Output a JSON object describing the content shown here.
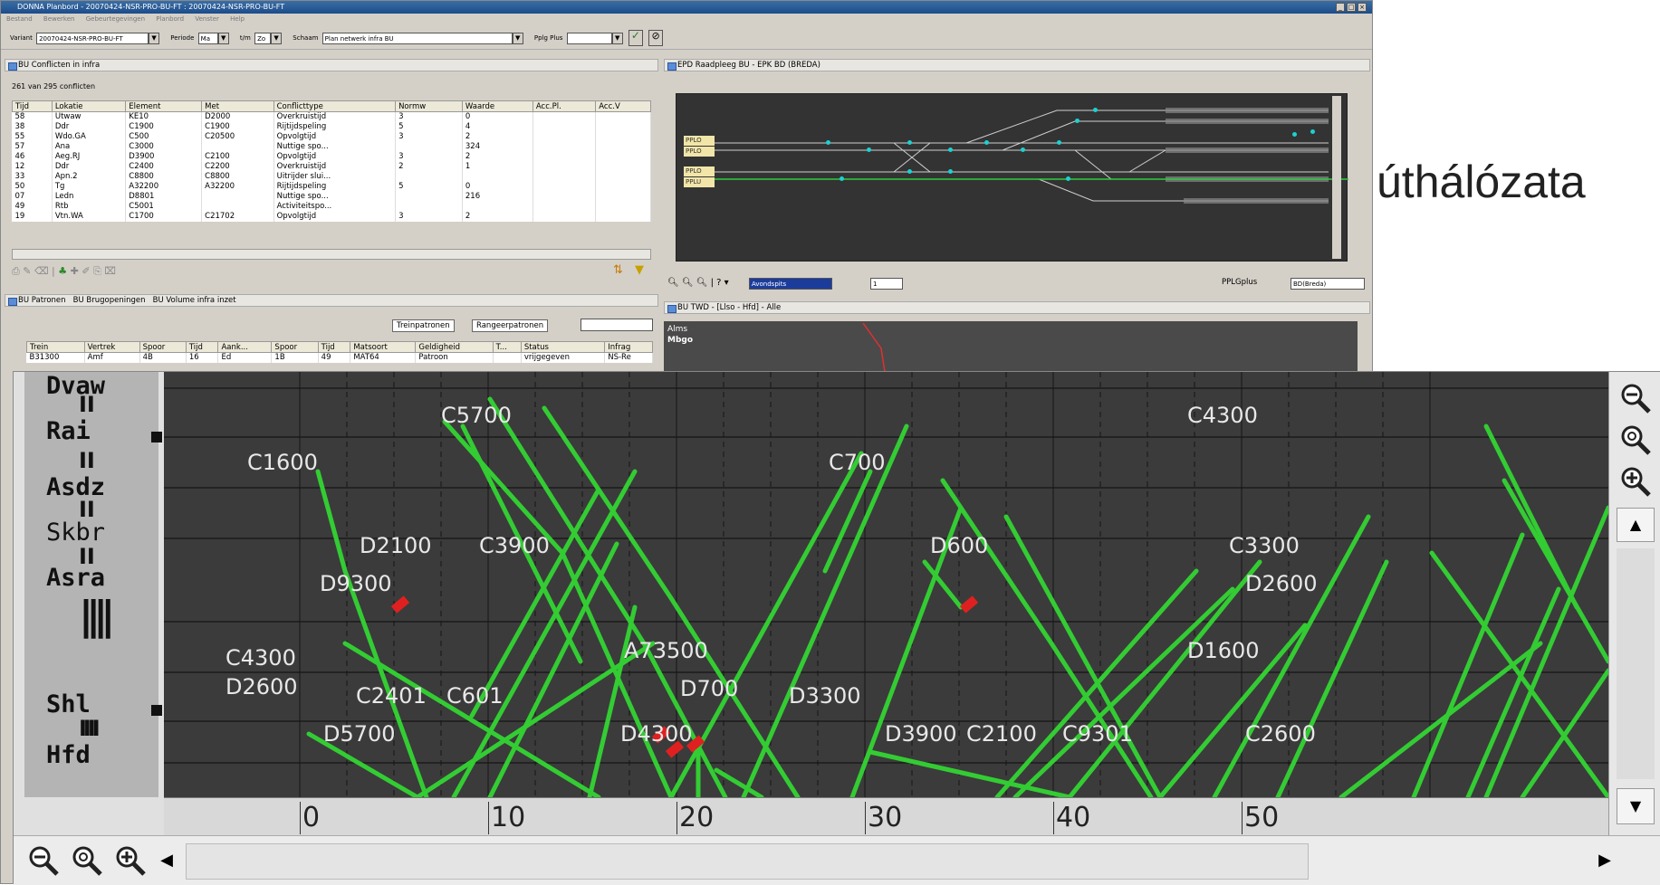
{
  "window": {
    "title": "DONNA Planbord - 20070424-NSR-PRO-BU-FT : 20070424-NSR-PRO-BU-FT",
    "menu": [
      "Bestand",
      "Bewerken",
      "Gebeurtegevingen",
      "Planbord",
      "Venster",
      "Help"
    ]
  },
  "toolbar": {
    "variant_label": "Variant",
    "variant_value": "20070424-NSR-PRO-BU-FT",
    "periode_label": "Periode",
    "periode_value": "Ma",
    "tm_label": "t/m",
    "tm_value": "Zo",
    "schaam_label": "Schaam",
    "schaam_value": "Plan netwerk infra BU",
    "pplg_label": "Pplg Plus"
  },
  "conflicts_panel": {
    "title": "BU Conflicten in infra",
    "count_text": "261 van 295 conflicten",
    "columns": [
      "Tijd",
      "Lokatie",
      "Element",
      "Met",
      "Conflicttype",
      "Normw",
      "Waarde",
      "Acc.Pl.",
      "Acc.V"
    ],
    "rows": [
      [
        "58",
        "Utwaw",
        "KE10",
        "D2000",
        "Overkruistijd",
        "3",
        "0",
        "",
        ""
      ],
      [
        "38",
        "Ddr",
        "C1900",
        "C1900",
        "Rijtijdspeling",
        "5",
        "4",
        "",
        ""
      ],
      [
        "55",
        "Wdo.GA",
        "C500",
        "C20500",
        "Opvolgtijd",
        "3",
        "2",
        "",
        ""
      ],
      [
        "57",
        "Ana",
        "C3000",
        "",
        "Nuttige spo...",
        "",
        "324",
        "",
        ""
      ],
      [
        "46",
        "Aeg.RJ",
        "D3900",
        "C2100",
        "Opvolgtijd",
        "3",
        "2",
        "",
        ""
      ],
      [
        "12",
        "Ddr",
        "C2400",
        "C2200",
        "Overkruistijd",
        "2",
        "1",
        "",
        ""
      ],
      [
        "33",
        "Apn.2",
        "C8800",
        "C8800",
        "Uitrijder slui...",
        "",
        "",
        "",
        ""
      ],
      [
        "50",
        "Tg",
        "A32200",
        "A32200",
        "Rijtijdspeling",
        "5",
        "0",
        "",
        ""
      ],
      [
        "07",
        "Ledn",
        "D8801",
        "",
        "Nuttige spo...",
        "",
        "216",
        "",
        ""
      ],
      [
        "49",
        "Rtb",
        "C5001",
        "",
        "Activiteitspo...",
        "",
        "",
        "",
        ""
      ],
      [
        "19",
        "Vtn.WA",
        "C1700",
        "C21702",
        "Opvolgtijd",
        "3",
        "2",
        "",
        ""
      ]
    ]
  },
  "patterns_panel": {
    "tabs": [
      "BU Patronen",
      "BU Brugopeningen",
      "BU Volume infra inzet"
    ],
    "buttons": [
      "Treinpatronen",
      "Rangeerpatronen"
    ],
    "columns": [
      "Trein",
      "Vertrek",
      "Spoor",
      "Tijd",
      "Aank...",
      "Spoor",
      "Tijd",
      "Matsoort",
      "Geldigheid",
      "T...",
      "Status",
      "Infrag"
    ],
    "row": [
      "B31300",
      "Amf",
      "4B",
      "16",
      "Ed",
      "1B",
      "49",
      "MAT64",
      "Patroon",
      "",
      "vrijgegeven",
      "NS-Re"
    ]
  },
  "epd_panel": {
    "title": "EPD Raadpleeg BU - EPK BD (BREDA)",
    "time_select": "Avondspits",
    "page_select": "1",
    "pplg_label": "PPLGplus",
    "pplg_value": "BD(Breda)",
    "ppl_tags": [
      "PPLO",
      "PPLO",
      "PPLO",
      "PPLU"
    ]
  },
  "twd_panel": {
    "title": "BU TWD - [Llso - Hfd] - Alle",
    "stations": [
      "Alms",
      "Mbgo"
    ]
  },
  "background_text": "úthálózata",
  "graph": {
    "stations": [
      "Dvaw",
      "Rai",
      "Asdz",
      "Skbr",
      "Asra",
      "Shl",
      "Hfd"
    ],
    "axis_ticks": [
      "0",
      "10",
      "20",
      "30",
      "40",
      "50"
    ],
    "train_labels": [
      "C5700",
      "C4300",
      "C1600",
      "C700",
      "D2100",
      "C3900",
      "D600",
      "C3300",
      "D9300",
      "D2600",
      "A73500",
      "D1600",
      "C4300",
      "D2600",
      "C2401",
      "C601",
      "D700",
      "D3300",
      "D5700",
      "D4300",
      "D3900",
      "C2100",
      "C9301",
      "C2600"
    ]
  },
  "colors": {
    "train_line": "#33cc33",
    "conflict": "#e02020",
    "graph_bg": "#3b3b3b",
    "grid": "#1a1a1a"
  }
}
